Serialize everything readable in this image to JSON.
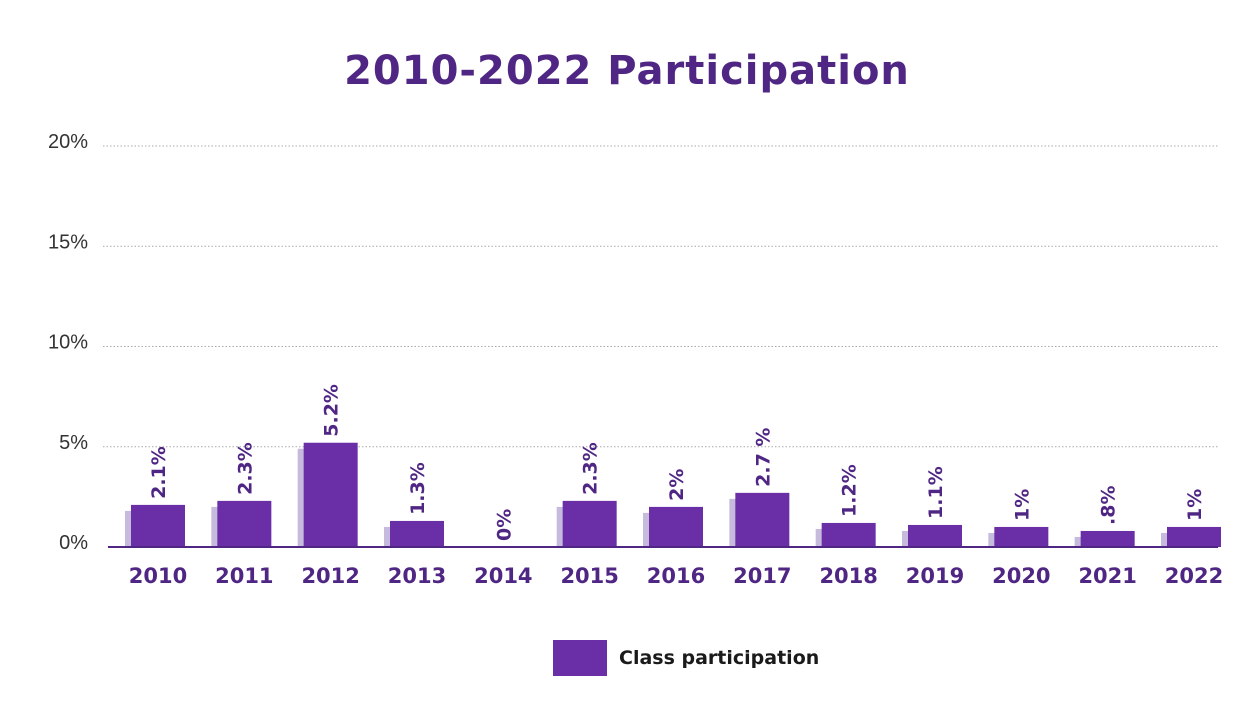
{
  "chart_data": {
    "type": "bar",
    "title": "2010-2022 Participation",
    "categories": [
      "2010",
      "2011",
      "2012",
      "2013",
      "2014",
      "2015",
      "2016",
      "2017",
      "2018",
      "2019",
      "2020",
      "2021",
      "2022"
    ],
    "series": [
      {
        "name": "Class participation",
        "values": [
          2.1,
          2.3,
          5.2,
          1.3,
          0,
          2.3,
          2,
          2.7,
          1.2,
          1.1,
          1,
          0.8,
          1
        ],
        "data_labels": [
          "2.1%",
          "2.3%",
          "5.2%",
          "1.3%",
          "0%",
          "2.3%",
          "2%",
          "2.7 %",
          "1.2%",
          "1.1%",
          "1%",
          ".8%",
          "1%"
        ]
      }
    ],
    "yticks": [
      "0%",
      "5%",
      "10%",
      "15%",
      "20%"
    ],
    "ylim": [
      0,
      20
    ],
    "grid": true,
    "legend": "bottom-center",
    "colors": {
      "bar": "#6a2ea7",
      "bar_shadow": "#c6bbdd",
      "text": "#4f2683",
      "grid": "#a9a9a9"
    }
  }
}
